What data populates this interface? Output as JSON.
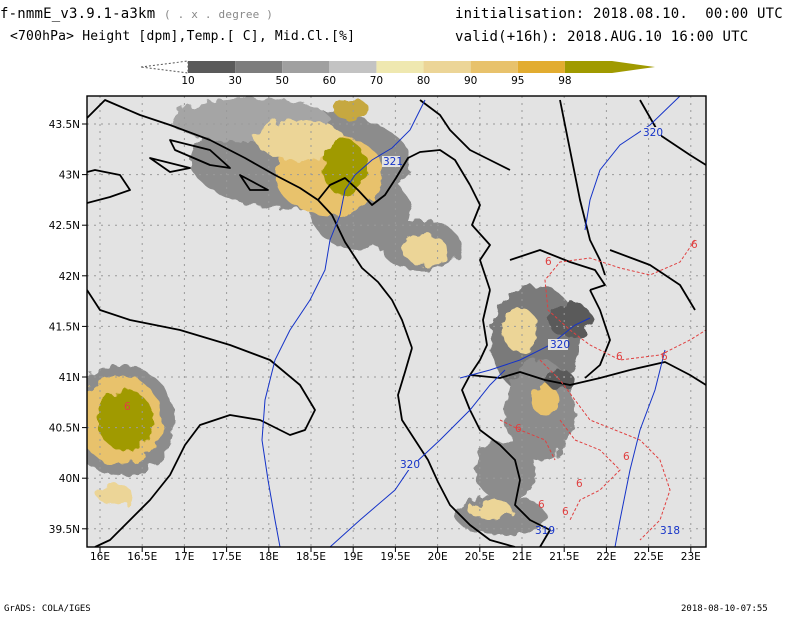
{
  "header": {
    "model_title": "f-nmmE_v3.9.1-a3km",
    "model_subtitle": "( . x . degree )",
    "fields_title": "<700hPa> Height [dpm],Temp.[ C], Mid.Cl.[%]",
    "init_label": "initialisation: 2018.08.10.  00:00 UTC",
    "valid_label": "valid(+16h): 2018.AUG.10 16:00 UTC"
  },
  "colorbar": {
    "ticks": [
      "10",
      "30",
      "50",
      "60",
      "70",
      "80",
      "90",
      "95",
      "98"
    ],
    "colors": [
      "#5a5a5a",
      "#7d7d7d",
      "#a0a0a0",
      "#c3c3c3",
      "#efe8b0",
      "#ecd597",
      "#e8c26c",
      "#e2ac30",
      "#a09a00"
    ]
  },
  "map": {
    "lat_labels": [
      "43.5N",
      "43N",
      "42.5N",
      "42N",
      "41.5N",
      "41N",
      "40.5N",
      "40N",
      "39.5N"
    ],
    "lon_labels": [
      "16E",
      "16.5E",
      "17E",
      "17.5E",
      "18E",
      "18.5E",
      "19E",
      "19.5E",
      "20E",
      "20.5E",
      "21E",
      "21.5E",
      "22E",
      "22.5E",
      "23E"
    ],
    "height_labels": [
      "320",
      "321",
      "320",
      "320",
      "318",
      "319"
    ],
    "temp_labels": [
      "6",
      "6",
      "6",
      "6",
      "6",
      "6",
      "6",
      "6",
      "6",
      "6"
    ],
    "colors": {
      "background": "#e3e3e3",
      "coast": "#000000",
      "height_contour": "#1533c8",
      "temp_contour": "#e04040"
    }
  },
  "footer": {
    "credit": "GrADS: COLA/IGES",
    "timestamp": "2018-08-10-07:55"
  }
}
